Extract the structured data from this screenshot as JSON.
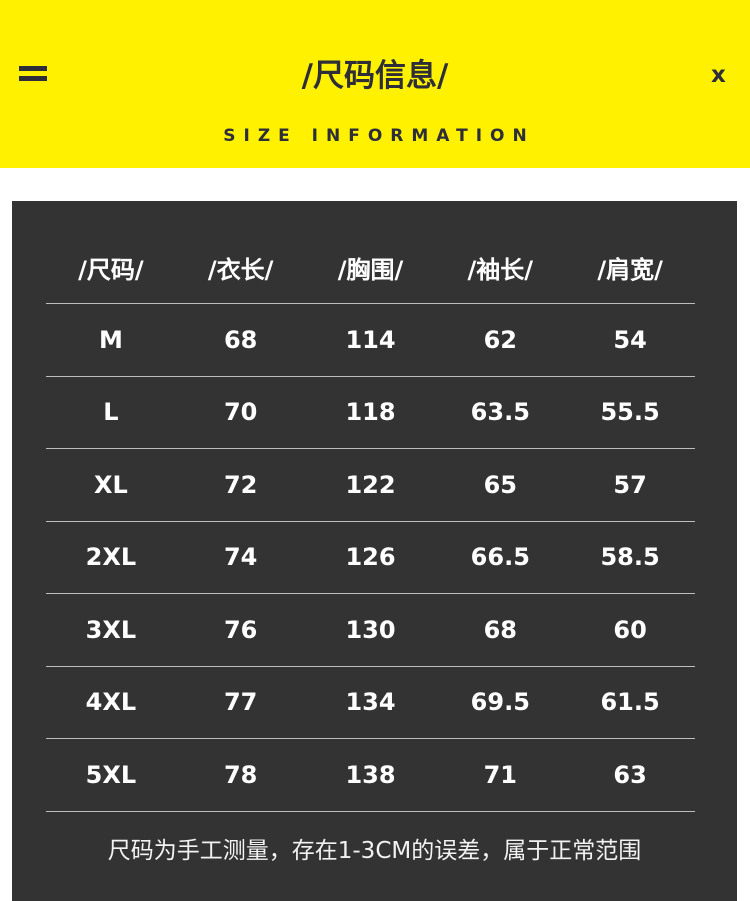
{
  "header": {
    "title": "/尺码信息/",
    "subtitle": "SIZE INFORMATION",
    "close_label": "x",
    "menu_icon": "hamburger-icon",
    "background": "#fff100"
  },
  "table": {
    "columns": [
      "/尺码/",
      "/衣长/",
      "/胸围/",
      "/袖长/",
      "/肩宽/"
    ],
    "rows": [
      [
        "M",
        "68",
        "114",
        "62",
        "54"
      ],
      [
        "L",
        "70",
        "118",
        "63.5",
        "55.5"
      ],
      [
        "XL",
        "72",
        "122",
        "65",
        "57"
      ],
      [
        "2XL",
        "74",
        "126",
        "66.5",
        "58.5"
      ],
      [
        "3XL",
        "76",
        "130",
        "68",
        "60"
      ],
      [
        "4XL",
        "77",
        "134",
        "69.5",
        "61.5"
      ],
      [
        "5XL",
        "78",
        "138",
        "71",
        "63"
      ]
    ]
  },
  "note": "尺码为手工测量，存在1-3CM的误差，属于正常范围"
}
